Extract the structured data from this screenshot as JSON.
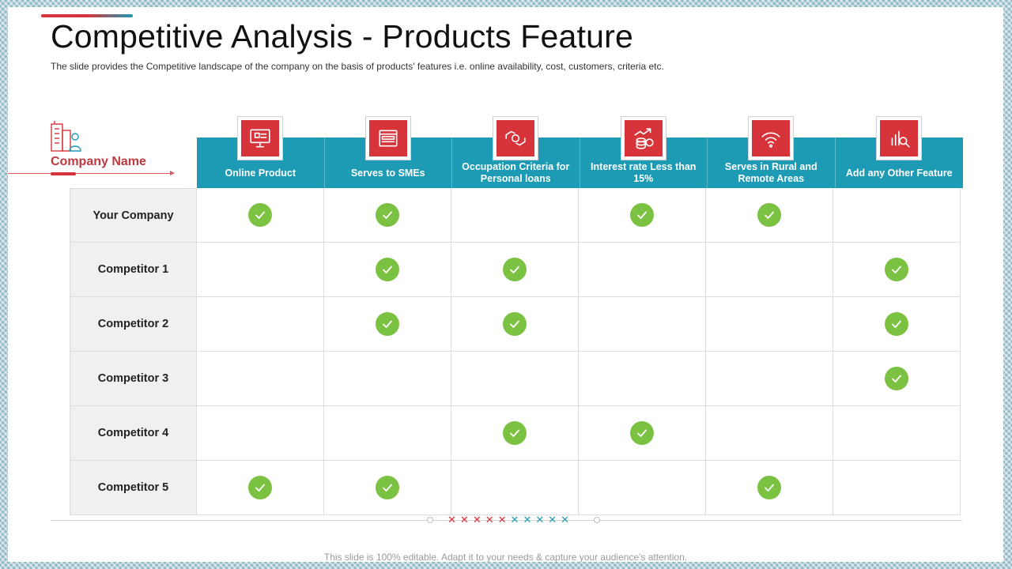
{
  "slide": {
    "title": "Competitive Analysis - Products Feature",
    "subtitle": "The slide provides  the Competitive  landscape of the company on the basis of products' features  i.e. online availability,  cost, customers, criteria etc.",
    "company_label": "Company Name",
    "footer_note": "This slide is 100% editable. Adapt it to your needs & capture your audience's attention."
  },
  "features": [
    {
      "label": "Online Product",
      "icon": "online-product-icon"
    },
    {
      "label": "Serves to SMEs",
      "icon": "browser-window-icon"
    },
    {
      "label": "Occupation Criteria for Personal loans",
      "icon": "handshake-money-icon"
    },
    {
      "label": "Interest rate Less than 15%",
      "icon": "coins-growth-icon"
    },
    {
      "label": "Serves in Rural and Remote Areas",
      "icon": "wifi-icon"
    },
    {
      "label": "Add any Other Feature",
      "icon": "analytics-search-icon"
    }
  ],
  "rows": [
    {
      "name": "Your Company",
      "checks": [
        true,
        true,
        false,
        true,
        true,
        false
      ]
    },
    {
      "name": "Competitor 1",
      "checks": [
        false,
        true,
        true,
        false,
        false,
        true
      ]
    },
    {
      "name": "Competitor 2",
      "checks": [
        false,
        true,
        true,
        false,
        false,
        true
      ]
    },
    {
      "name": "Competitor 3",
      "checks": [
        false,
        false,
        false,
        false,
        false,
        true
      ]
    },
    {
      "name": "Competitor 4",
      "checks": [
        false,
        false,
        true,
        true,
        false,
        false
      ]
    },
    {
      "name": "Competitor 5",
      "checks": [
        true,
        true,
        false,
        false,
        true,
        false
      ]
    }
  ],
  "colors": {
    "header_bg": "#1e9bb4",
    "icon_bg": "#d6343a",
    "check_green": "#7cc242",
    "row_label_bg": "#f0f0f0",
    "accent_red": "#d6343a"
  }
}
